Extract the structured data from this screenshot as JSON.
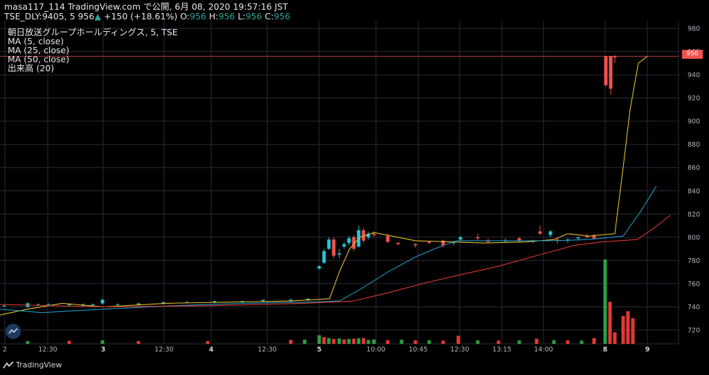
{
  "header": {
    "line1": "masa117_114 TradingView.com で公開, 6月 08, 2020 19:57:16 JST",
    "symbol": "TSE_DLY:9405, 5",
    "last": "956",
    "change": "+150 (+18.61%)",
    "o_label": "O:",
    "o": "956",
    "h_label": "H:",
    "h": "956",
    "l_label": "L:",
    "l": "956",
    "c_label": "C:",
    "c": "956"
  },
  "legend": [
    "朝日放送グループホールディングス, 5, TSE",
    "MA (5, close)",
    "MA (25, close)",
    "MA (50, close)",
    "出来高 (20)"
  ],
  "price_tag": "956",
  "brand": "TradingView",
  "colors": {
    "up": "#26c6da",
    "down": "#ef5350",
    "ma5": "#e6c229",
    "ma25": "#1e9cc8",
    "ma50": "#e0382e",
    "vol_up": "#2e9e44",
    "vol_down": "#e53935",
    "grid": "#2a2e39"
  },
  "chart_data": {
    "type": "candlestick",
    "y_range": [
      710,
      980
    ],
    "y_ticks": [
      720,
      740,
      760,
      780,
      800,
      820,
      840,
      860,
      880,
      900,
      920,
      940,
      960,
      980
    ],
    "x_ticks": [
      "2",
      "12:30",
      "3",
      "12:30",
      "4",
      "12:30",
      "5",
      "10:00",
      "10:45",
      "12:30",
      "13:15",
      "14:00",
      "8",
      "9"
    ],
    "last_price": 956,
    "series": [
      {
        "name": "MA (5, close)",
        "role": "ma5",
        "points": [
          [
            0,
            733
          ],
          [
            40,
            738
          ],
          [
            90,
            743
          ],
          [
            150,
            740
          ],
          [
            240,
            743
          ],
          [
            320,
            744
          ],
          [
            420,
            745
          ],
          [
            476,
            747
          ],
          [
            490,
            770
          ],
          [
            505,
            790
          ],
          [
            520,
            800
          ],
          [
            540,
            804
          ],
          [
            600,
            797
          ],
          [
            650,
            796
          ],
          [
            700,
            795
          ],
          [
            760,
            796
          ],
          [
            800,
            798
          ],
          [
            820,
            803
          ],
          [
            850,
            801
          ],
          [
            888,
            803
          ],
          [
            900,
            860
          ],
          [
            910,
            910
          ],
          [
            922,
            950
          ],
          [
            935,
            956
          ]
        ]
      },
      {
        "name": "MA (25, close)",
        "role": "ma25",
        "points": [
          [
            0,
            738
          ],
          [
            60,
            735
          ],
          [
            150,
            738
          ],
          [
            250,
            741
          ],
          [
            350,
            743
          ],
          [
            440,
            744
          ],
          [
            490,
            745
          ],
          [
            520,
            755
          ],
          [
            560,
            770
          ],
          [
            600,
            783
          ],
          [
            640,
            793
          ],
          [
            660,
            797
          ],
          [
            720,
            797
          ],
          [
            800,
            797
          ],
          [
            850,
            798
          ],
          [
            900,
            801
          ],
          [
            925,
            822
          ],
          [
            948,
            844
          ]
        ]
      },
      {
        "name": "MA (50, close)",
        "role": "ma50",
        "points": [
          [
            0,
            742
          ],
          [
            150,
            740
          ],
          [
            300,
            741
          ],
          [
            440,
            743
          ],
          [
            510,
            745
          ],
          [
            560,
            752
          ],
          [
            610,
            760
          ],
          [
            660,
            767
          ],
          [
            720,
            775
          ],
          [
            780,
            785
          ],
          [
            830,
            793
          ],
          [
            870,
            796
          ],
          [
            920,
            798
          ],
          [
            945,
            808
          ],
          [
            968,
            819
          ]
        ]
      }
    ],
    "candles": [
      [
        6,
        741,
        742,
        740,
        741
      ],
      [
        40,
        740,
        744,
        739,
        743
      ],
      [
        55,
        742,
        743,
        741,
        742
      ],
      [
        70,
        742,
        743,
        741,
        742
      ],
      [
        100,
        742,
        743,
        741,
        742
      ],
      [
        120,
        741,
        743,
        740,
        742
      ],
      [
        134,
        742,
        743,
        741,
        742
      ],
      [
        148,
        743,
        747,
        742,
        746
      ],
      [
        170,
        742,
        743,
        741,
        742
      ],
      [
        200,
        742,
        743,
        741,
        743
      ],
      [
        236,
        743,
        744,
        742,
        744
      ],
      [
        270,
        744,
        745,
        743,
        744
      ],
      [
        310,
        744,
        745,
        743,
        745
      ],
      [
        350,
        744,
        745,
        743,
        745
      ],
      [
        380,
        745,
        746,
        744,
        746
      ],
      [
        420,
        745,
        747,
        744,
        746
      ],
      [
        445,
        746,
        747,
        745,
        747
      ],
      [
        461,
        773,
        776,
        772,
        775
      ],
      [
        468,
        778,
        790,
        777,
        788
      ],
      [
        475,
        790,
        800,
        789,
        798
      ],
      [
        482,
        798,
        800,
        782,
        784
      ],
      [
        490,
        785,
        790,
        782,
        786
      ],
      [
        497,
        792,
        796,
        790,
        794
      ],
      [
        504,
        795,
        801,
        793,
        799
      ],
      [
        511,
        800,
        802,
        788,
        790
      ],
      [
        518,
        792,
        810,
        791,
        806
      ],
      [
        525,
        806,
        808,
        795,
        797
      ],
      [
        532,
        800,
        805,
        798,
        803
      ],
      [
        540,
        803,
        805,
        800,
        802
      ],
      [
        560,
        801,
        803,
        795,
        796
      ],
      [
        575,
        795,
        796,
        793,
        794
      ],
      [
        600,
        794,
        795,
        791,
        793
      ],
      [
        620,
        796,
        797,
        794,
        795
      ],
      [
        640,
        797,
        798,
        791,
        793
      ],
      [
        655,
        795,
        797,
        793,
        796
      ],
      [
        665,
        798,
        801,
        797,
        800
      ],
      [
        690,
        800,
        803,
        797,
        799
      ],
      [
        705,
        797,
        799,
        795,
        796
      ],
      [
        730,
        797,
        799,
        795,
        797
      ],
      [
        750,
        799,
        800,
        796,
        797
      ],
      [
        770,
        797,
        798,
        795,
        796
      ],
      [
        780,
        805,
        810,
        802,
        803
      ],
      [
        795,
        802,
        806,
        800,
        805
      ],
      [
        805,
        798,
        800,
        794,
        797
      ],
      [
        820,
        797,
        799,
        795,
        798
      ],
      [
        835,
        799,
        800,
        797,
        800
      ],
      [
        848,
        801,
        803,
        799,
        800
      ],
      [
        858,
        801,
        803,
        798,
        799
      ],
      [
        875,
        956,
        956,
        930,
        931
      ],
      [
        882,
        956,
        956,
        923,
        928
      ],
      [
        888,
        956,
        957,
        950,
        955
      ]
    ],
    "volume": [
      [
        40,
        0.3,
        "up"
      ],
      [
        100,
        0.4,
        "down"
      ],
      [
        148,
        0.6,
        "up"
      ],
      [
        200,
        0.3,
        "down"
      ],
      [
        300,
        0.3,
        "down"
      ],
      [
        420,
        0.8,
        "down"
      ],
      [
        440,
        0.9,
        "up"
      ],
      [
        461,
        2.8,
        "up"
      ],
      [
        468,
        2.0,
        "down"
      ],
      [
        475,
        1.6,
        "up"
      ],
      [
        482,
        1.2,
        "down"
      ],
      [
        490,
        1.4,
        "up"
      ],
      [
        497,
        1.0,
        "down"
      ],
      [
        504,
        1.2,
        "up"
      ],
      [
        511,
        1.3,
        "down"
      ],
      [
        518,
        1.5,
        "up"
      ],
      [
        525,
        1.6,
        "down"
      ],
      [
        532,
        0.8,
        "up"
      ],
      [
        540,
        1.0,
        "up"
      ],
      [
        560,
        0.7,
        "down"
      ],
      [
        580,
        0.9,
        "up"
      ],
      [
        600,
        0.6,
        "down"
      ],
      [
        620,
        0.7,
        "up"
      ],
      [
        640,
        0.5,
        "down"
      ],
      [
        662,
        2.6,
        "down"
      ],
      [
        690,
        0.6,
        "up"
      ],
      [
        720,
        0.5,
        "down"
      ],
      [
        750,
        0.6,
        "up"
      ],
      [
        775,
        1.3,
        "down"
      ],
      [
        800,
        0.7,
        "up"
      ],
      [
        820,
        0.6,
        "down"
      ],
      [
        840,
        0.5,
        "up"
      ],
      [
        858,
        1.6,
        "down"
      ],
      [
        874,
        35,
        "up"
      ],
      [
        881,
        17,
        "down"
      ],
      [
        888,
        4,
        "down"
      ],
      [
        900,
        11,
        "down"
      ],
      [
        907,
        13,
        "down"
      ],
      [
        914,
        10,
        "down"
      ]
    ]
  }
}
